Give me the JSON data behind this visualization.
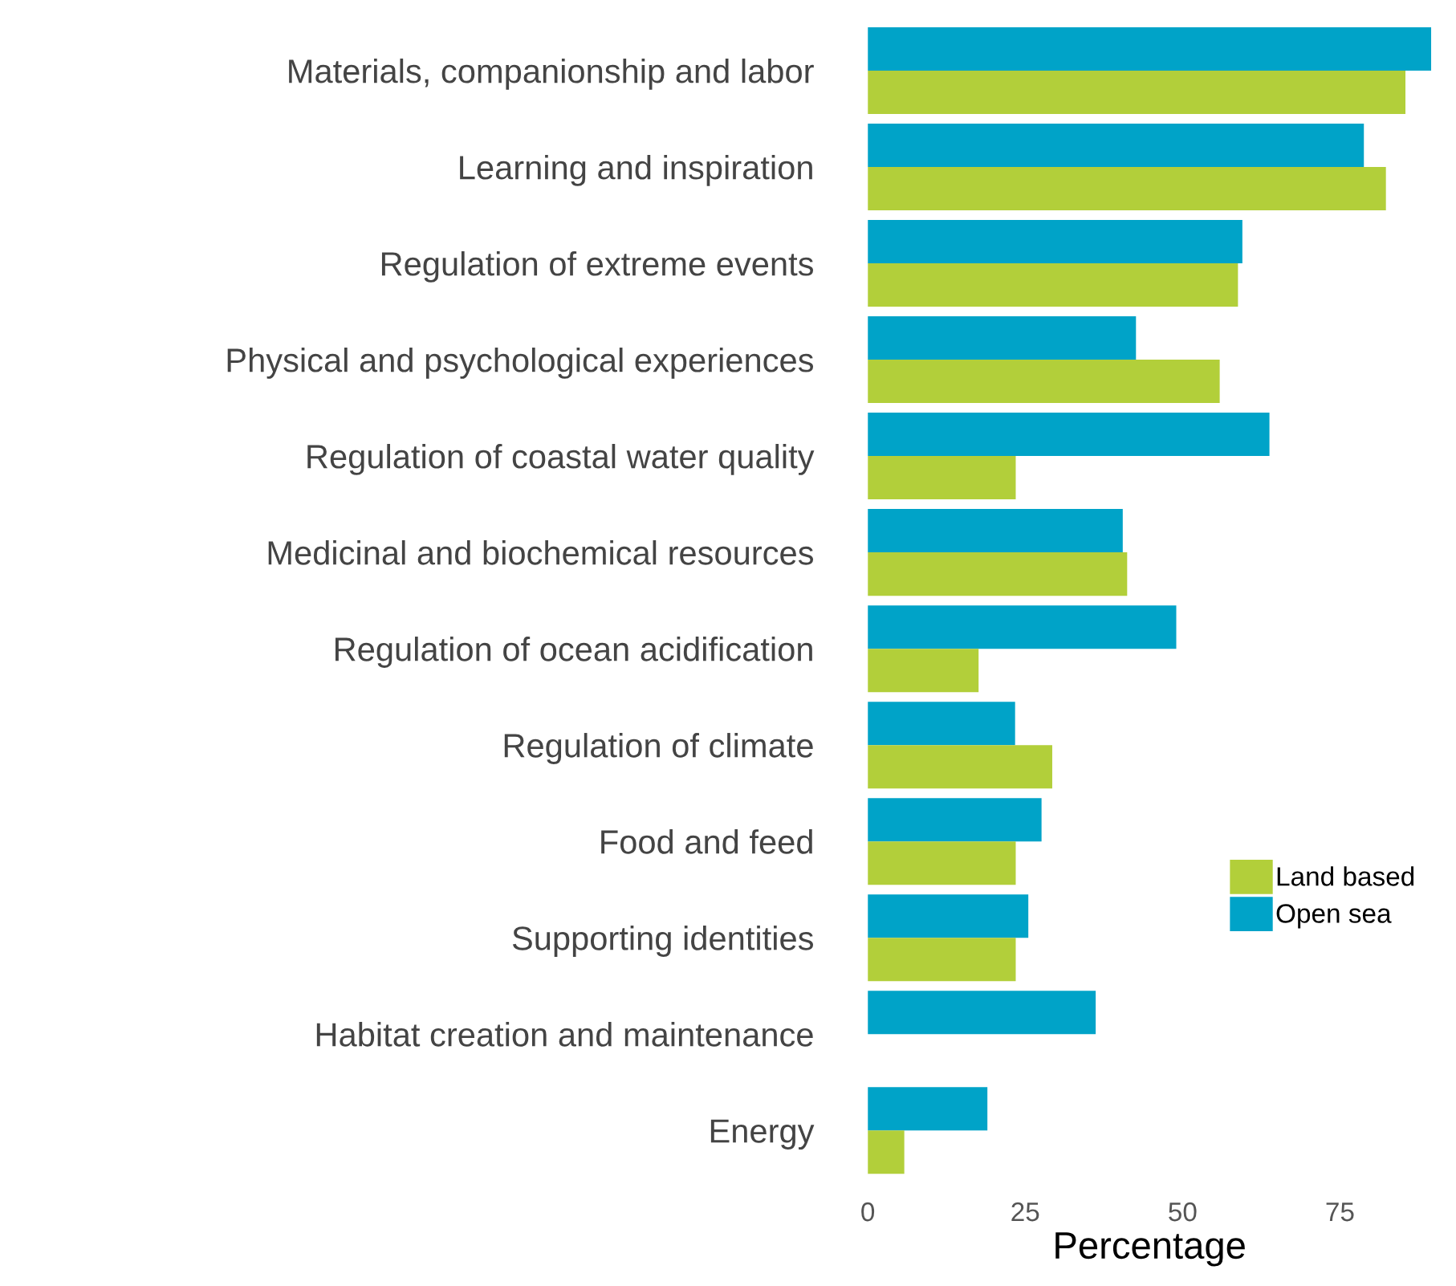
{
  "chart_data": {
    "type": "bar",
    "orientation": "horizontal",
    "xlabel": "Percentage",
    "categories": [
      "Materials, companionship and labor",
      "Learning and inspiration",
      "Regulation of extreme events",
      "Physical and psychological experiences",
      "Regulation of coastal water quality",
      "Medicinal and biochemical resources",
      "Regulation of ocean acidification",
      "Regulation of climate",
      "Food and feed",
      "Supporting identities",
      "Habitat creation and maintenance",
      "Energy"
    ],
    "series": [
      {
        "name": "Open sea",
        "color": "#00a3c8",
        "values": [
          89.5,
          78.8,
          59.5,
          42.6,
          63.8,
          40.5,
          49.0,
          23.4,
          27.6,
          25.5,
          36.2,
          19.0
        ]
      },
      {
        "name": "Land based",
        "color": "#b2cf3a",
        "values": [
          85.4,
          82.3,
          58.8,
          55.9,
          23.5,
          41.2,
          17.6,
          29.3,
          23.5,
          23.5,
          null,
          5.8
        ]
      }
    ],
    "xlim": [
      0,
      89.5
    ],
    "xticks": [
      0,
      25,
      50,
      75
    ],
    "grid": false,
    "legend": "right"
  }
}
